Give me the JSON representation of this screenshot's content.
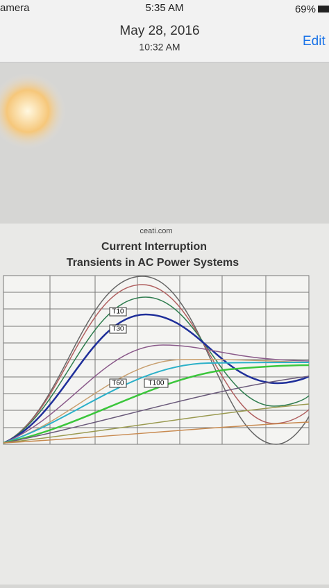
{
  "status_bar": {
    "carrier": "amera",
    "time": "5:35 AM",
    "battery": "69%"
  },
  "header": {
    "date": "May 28, 2016",
    "time": "10:32 AM",
    "action": "Edit"
  },
  "image": {
    "source": "ceati.com",
    "title_line_1": "Current Interruption",
    "title_line_2": "Transients in AC Power Systems",
    "curve_labels": [
      "T10",
      "T30",
      "T60",
      "T100"
    ]
  }
}
